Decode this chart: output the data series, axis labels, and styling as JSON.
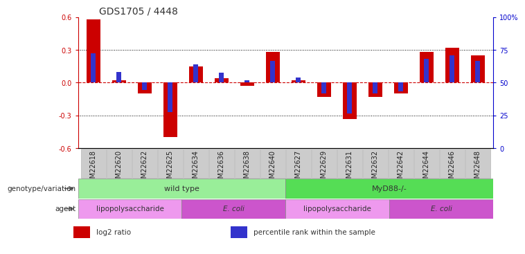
{
  "title": "GDS1705 / 4448",
  "samples": [
    "GSM22618",
    "GSM22620",
    "GSM22622",
    "GSM22625",
    "GSM22634",
    "GSM22636",
    "GSM22638",
    "GSM22640",
    "GSM22627",
    "GSM22629",
    "GSM22631",
    "GSM22632",
    "GSM22642",
    "GSM22644",
    "GSM22646",
    "GSM22648"
  ],
  "log2_ratio": [
    0.58,
    0.02,
    -0.1,
    -0.5,
    0.15,
    0.04,
    -0.03,
    0.28,
    0.02,
    -0.13,
    -0.33,
    -0.13,
    -0.1,
    0.28,
    0.32,
    0.25
  ],
  "percentile_rank": [
    0.27,
    0.1,
    -0.07,
    -0.27,
    0.17,
    0.09,
    0.02,
    0.2,
    0.05,
    -0.1,
    -0.28,
    -0.1,
    -0.08,
    0.22,
    0.25,
    0.2
  ],
  "ylim": [
    -0.6,
    0.6
  ],
  "yticks": [
    -0.6,
    -0.3,
    0.0,
    0.3,
    0.6
  ],
  "right_yticks": [
    0,
    25,
    50,
    75,
    100
  ],
  "right_ytick_labels": [
    "0",
    "25",
    "50",
    "75",
    "100%"
  ],
  "bar_color_red": "#cc0000",
  "bar_color_blue": "#3333cc",
  "zero_line_color": "#cc0000",
  "grid_color": "#000000",
  "bg_color": "#ffffff",
  "genotype_groups": [
    {
      "label": "wild type",
      "start": 0,
      "end": 8,
      "color": "#99ee99"
    },
    {
      "label": "MyD88-/-",
      "start": 8,
      "end": 16,
      "color": "#55dd55"
    }
  ],
  "agent_groups": [
    {
      "label": "lipopolysaccharide",
      "start": 0,
      "end": 4,
      "color": "#ee99ee"
    },
    {
      "label": "E. coli",
      "start": 4,
      "end": 8,
      "color": "#cc55cc"
    },
    {
      "label": "lipopolysaccharide",
      "start": 8,
      "end": 12,
      "color": "#ee99ee"
    },
    {
      "label": "E. coli",
      "start": 12,
      "end": 16,
      "color": "#cc55cc"
    }
  ],
  "genotype_label": "genotype/variation",
  "agent_label": "agent",
  "legend_items": [
    {
      "label": "log2 ratio",
      "color": "#cc0000"
    },
    {
      "label": "percentile rank within the sample",
      "color": "#3333cc"
    }
  ],
  "red_bar_width": 0.55,
  "blue_bar_width": 0.18,
  "title_fontsize": 10,
  "tick_fontsize": 7,
  "right_axis_color": "#0000cc",
  "xtick_bg_color": "#cccccc"
}
